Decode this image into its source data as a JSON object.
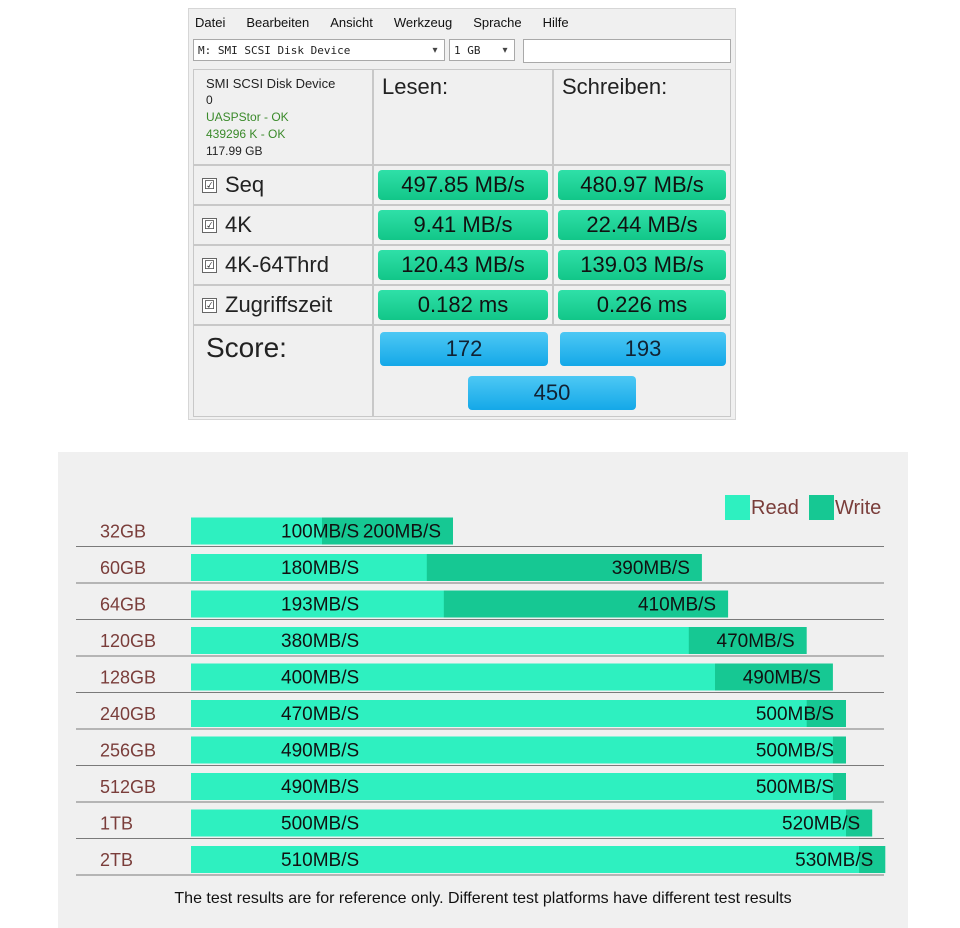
{
  "app": {
    "menu": [
      "Datei",
      "Bearbeiten",
      "Ansicht",
      "Werkzeug",
      "Sprache",
      "Hilfe"
    ],
    "drive_select": "M: SMI  SCSI Disk Device",
    "size_select": "1 GB",
    "device": {
      "name": "SMI  SCSI Disk Device",
      "index": "0",
      "driver_status": "UASPStor - OK",
      "alignment_status": "439296 K - OK",
      "capacity": "117.99 GB"
    },
    "read_header": "Lesen:",
    "write_header": "Schreiben:",
    "rows": [
      {
        "label": "Seq",
        "read": "497.85 MB/s",
        "write": "480.97 MB/s"
      },
      {
        "label": "4K",
        "read": "9.41 MB/s",
        "write": "22.44 MB/s"
      },
      {
        "label": "4K-64Thrd",
        "read": "120.43 MB/s",
        "write": "139.03 MB/s"
      },
      {
        "label": "Zugriffszeit",
        "read": "0.182 ms",
        "write": "0.226 ms"
      }
    ],
    "score_label": "Score:",
    "score_read": "172",
    "score_write": "193",
    "score_total": "450",
    "checkbox_glyph": "☑",
    "accent_green": "#1fd79a",
    "accent_blue": "#2bb8ef"
  },
  "chart_data": {
    "type": "bar",
    "orientation": "horizontal",
    "categories": [
      "32GB",
      "60GB",
      "64GB",
      "120GB",
      "128GB",
      "240GB",
      "256GB",
      "512GB",
      "1TB",
      "2TB"
    ],
    "series": [
      {
        "name": "Read",
        "values": [
          100,
          180,
          193,
          380,
          400,
          470,
          490,
          490,
          500,
          510
        ],
        "labels": [
          "100MB/S",
          "180MB/S",
          "193MB/S",
          "380MB/S",
          "400MB/S",
          "470MB/S",
          "490MB/S",
          "490MB/S",
          "500MB/S",
          "510MB/S"
        ],
        "color": "#2ef0c0"
      },
      {
        "name": "Write",
        "values": [
          200,
          390,
          410,
          470,
          490,
          500,
          500,
          500,
          520,
          530
        ],
        "labels": [
          "200MB/S",
          "390MB/S",
          "410MB/S",
          "470MB/S",
          "490MB/S",
          "500MB/S",
          "500MB/S",
          "500MB/S",
          "520MB/S",
          "530MB/S"
        ],
        "color": "#16c893"
      }
    ],
    "legend_position": "top-right",
    "grid": false,
    "footnote": "The test results are for reference only. Different test platforms have different test results"
  }
}
